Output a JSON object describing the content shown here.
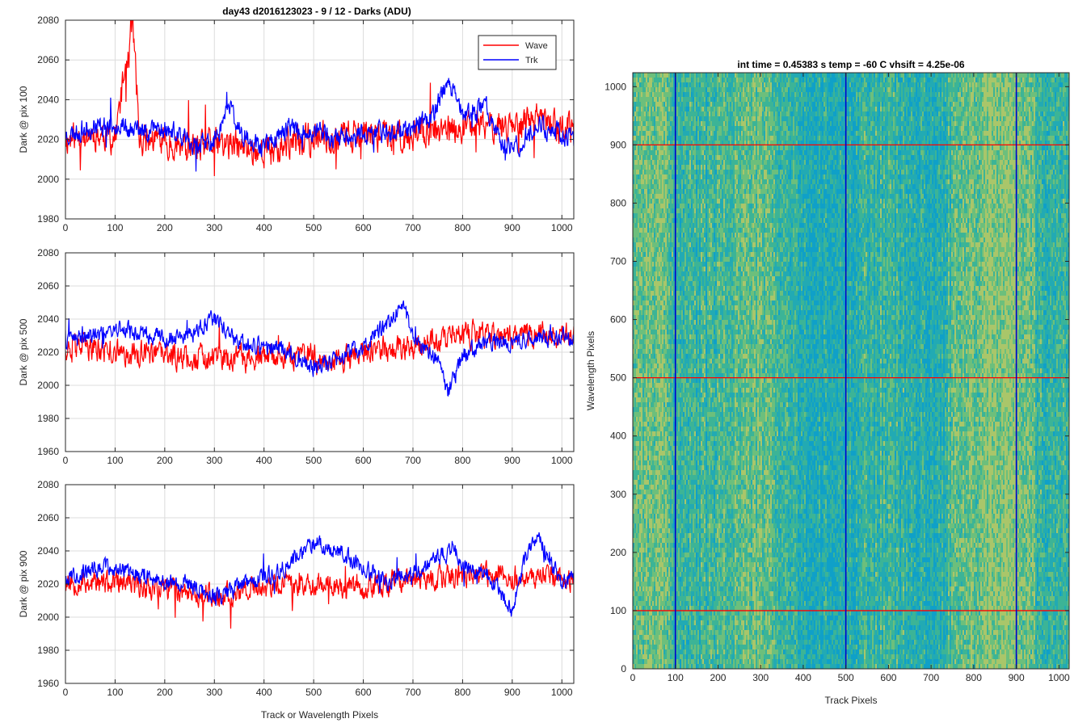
{
  "figure_title": "day43 d2016123023 - 9 / 12 - Darks (ADU)",
  "chart_data": [
    {
      "type": "line",
      "ylabel": "Dark @ pix 100",
      "xlabel": "",
      "xlim": [
        0,
        1024
      ],
      "ylim": [
        1980,
        2080
      ],
      "xticks": [
        0,
        100,
        200,
        300,
        400,
        500,
        600,
        700,
        800,
        900,
        1000
      ],
      "yticks": [
        1980,
        2000,
        2020,
        2040,
        2060,
        2080
      ],
      "grid": true,
      "legend": "top-right",
      "series": [
        {
          "name": "Wave",
          "color": "#ff0000",
          "x": [
            0,
            50,
            100,
            135,
            150,
            200,
            250,
            300,
            350,
            400,
            450,
            500,
            550,
            600,
            650,
            700,
            750,
            800,
            850,
            900,
            950,
            1000,
            1024
          ],
          "y": [
            2020,
            2023,
            2021,
            2080,
            2019,
            2020,
            2015,
            2018,
            2016,
            2014,
            2018,
            2020,
            2022,
            2024,
            2021,
            2023,
            2024,
            2026,
            2027,
            2028,
            2030,
            2026,
            2024
          ],
          "noise": 12,
          "seed": 11
        },
        {
          "name": "Trk",
          "color": "#0000ff",
          "x": [
            0,
            50,
            100,
            150,
            200,
            250,
            300,
            330,
            350,
            400,
            450,
            500,
            550,
            600,
            650,
            700,
            740,
            770,
            800,
            850,
            880,
            900,
            950,
            1000,
            1024
          ],
          "y": [
            2022,
            2026,
            2028,
            2024,
            2026,
            2018,
            2018,
            2038,
            2024,
            2016,
            2026,
            2024,
            2020,
            2022,
            2024,
            2026,
            2032,
            2050,
            2032,
            2036,
            2018,
            2014,
            2028,
            2022,
            2020
          ],
          "noise": 8,
          "seed": 23
        }
      ]
    },
    {
      "type": "line",
      "ylabel": "Dark @ pix 500",
      "xlabel": "",
      "xlim": [
        0,
        1024
      ],
      "ylim": [
        1960,
        2080
      ],
      "xticks": [
        0,
        100,
        200,
        300,
        400,
        500,
        600,
        700,
        800,
        900,
        1000
      ],
      "yticks": [
        1960,
        1980,
        2000,
        2020,
        2040,
        2060,
        2080
      ],
      "grid": true,
      "series": [
        {
          "name": "Wave",
          "color": "#ff0000",
          "x": [
            0,
            100,
            200,
            300,
            400,
            500,
            550,
            600,
            700,
            800,
            900,
            1000,
            1024
          ],
          "y": [
            2024,
            2020,
            2018,
            2016,
            2016,
            2018,
            2014,
            2020,
            2024,
            2030,
            2030,
            2032,
            2030
          ],
          "noise": 12,
          "seed": 37
        },
        {
          "name": "Trk",
          "color": "#0000ff",
          "x": [
            0,
            50,
            100,
            150,
            200,
            250,
            300,
            350,
            400,
            450,
            500,
            550,
            600,
            650,
            680,
            700,
            750,
            770,
            800,
            850,
            900,
            950,
            1000,
            1024
          ],
          "y": [
            2026,
            2030,
            2034,
            2032,
            2028,
            2030,
            2040,
            2024,
            2024,
            2020,
            2010,
            2016,
            2024,
            2038,
            2048,
            2030,
            2014,
            1994,
            2018,
            2026,
            2026,
            2028,
            2030,
            2026
          ],
          "noise": 8,
          "seed": 41
        }
      ]
    },
    {
      "type": "line",
      "ylabel": "Dark @ pix 900",
      "xlabel": "Track or Wavelength Pixels",
      "xlim": [
        0,
        1024
      ],
      "ylim": [
        1960,
        2080
      ],
      "xticks": [
        0,
        100,
        200,
        300,
        400,
        500,
        600,
        700,
        800,
        900,
        1000
      ],
      "yticks": [
        1960,
        1980,
        2000,
        2020,
        2040,
        2060,
        2080
      ],
      "grid": true,
      "series": [
        {
          "name": "Wave",
          "color": "#ff0000",
          "x": [
            0,
            100,
            200,
            300,
            400,
            500,
            600,
            700,
            800,
            900,
            1000,
            1024
          ],
          "y": [
            2022,
            2020,
            2018,
            2012,
            2018,
            2020,
            2018,
            2022,
            2026,
            2024,
            2026,
            2022
          ],
          "noise": 11,
          "seed": 53
        },
        {
          "name": "Trk",
          "color": "#0000ff",
          "x": [
            0,
            50,
            100,
            150,
            200,
            250,
            300,
            350,
            400,
            450,
            500,
            550,
            600,
            650,
            700,
            750,
            780,
            800,
            850,
            900,
            930,
            950,
            980,
            1000,
            1024
          ],
          "y": [
            2024,
            2028,
            2030,
            2026,
            2022,
            2020,
            2012,
            2018,
            2024,
            2032,
            2046,
            2040,
            2030,
            2022,
            2026,
            2036,
            2042,
            2030,
            2026,
            2004,
            2040,
            2050,
            2032,
            2020,
            2024
          ],
          "noise": 8,
          "seed": 67
        }
      ]
    },
    {
      "type": "heatmap",
      "title": "int time = 0.45383 s    temp = -60 C    vhsift = 4.25e-06",
      "xlabel": "Track Pixels",
      "ylabel": "Wavelength Pixels",
      "xlim": [
        0,
        1024
      ],
      "ylim": [
        0,
        1024
      ],
      "xticks": [
        0,
        100,
        200,
        300,
        400,
        500,
        600,
        700,
        800,
        900,
        1000
      ],
      "yticks": [
        0,
        100,
        200,
        300,
        400,
        500,
        600,
        700,
        800,
        900,
        1000
      ],
      "grid": false,
      "colormap": [
        "#0fa0c8",
        "#22aab3",
        "#3cb496",
        "#6cbf7c",
        "#a9c66a"
      ],
      "vlines": {
        "x": [
          100,
          500,
          900
        ],
        "color": "#0000cc"
      },
      "hlines": {
        "y": [
          100,
          500,
          900
        ],
        "color": "#ff0000"
      }
    }
  ]
}
